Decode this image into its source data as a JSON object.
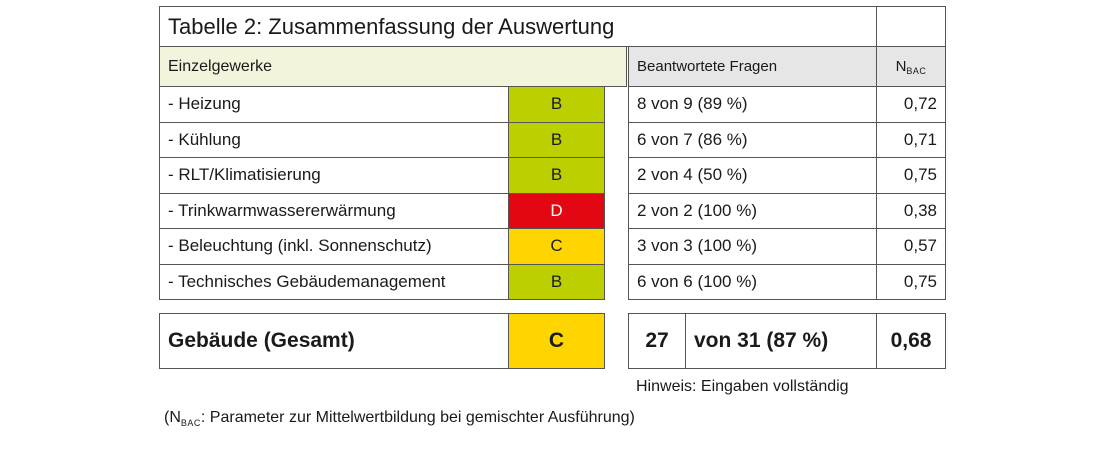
{
  "title": "Tabelle 2: Zusammenfassung der Auswertung",
  "header": {
    "category": "Einzelgewerke",
    "answered": "Beantwortete Fragen",
    "n_main": "N",
    "n_sub": "BAC"
  },
  "colors": {
    "B": "#bccf00",
    "C": "#ffd500",
    "D": "#e30613"
  },
  "rows": [
    {
      "label": "- Heizung",
      "grade": "B",
      "answered": "8 von 9 (89 %)",
      "n": "0,72"
    },
    {
      "label": "- Kühlung",
      "grade": "B",
      "answered": "6 von 7 (86 %)",
      "n": "0,71"
    },
    {
      "label": "- RLT/Klimatisierung",
      "grade": "B",
      "answered": "2 von 4 (50 %)",
      "n": "0,75"
    },
    {
      "label": "- Trinkwarmwassererwärmung",
      "grade": "D",
      "answered": "2 von 2 (100 %)",
      "n": "0,38"
    },
    {
      "label": "- Beleuchtung (inkl. Sonnenschutz)",
      "grade": "C",
      "answered": "3 von 3 (100 %)",
      "n": "0,57"
    },
    {
      "label": "- Technisches Gebäudemanagement",
      "grade": "B",
      "answered": "6 von 6 (100 %)",
      "n": "0,75"
    }
  ],
  "total": {
    "label": "Gebäude (Gesamt)",
    "grade": "C",
    "count": "27",
    "of": "von 31 (87 %)",
    "n": "0,68"
  },
  "hint": "Hinweis: Eingaben vollständig",
  "footnote": {
    "open": "(N",
    "sub": "BAC",
    "rest": ": Parameter zur Mittelwertbildung bei gemischter Ausführung)"
  }
}
